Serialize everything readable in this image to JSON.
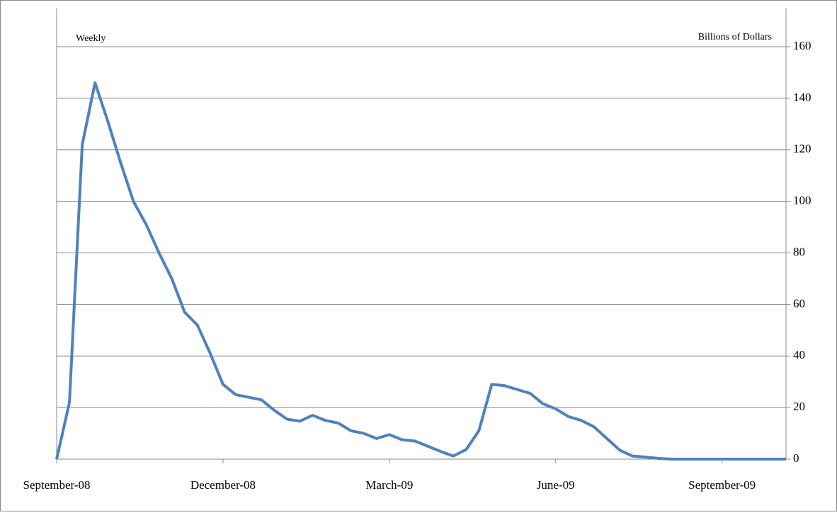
{
  "chart_data": {
    "type": "line",
    "annotation_left": "Weekly",
    "y_label": "Billions of Dollars",
    "categories": [
      "September-08",
      null,
      null,
      null,
      null,
      null,
      null,
      null,
      null,
      null,
      null,
      null,
      null,
      "December-08",
      null,
      null,
      null,
      null,
      null,
      null,
      null,
      null,
      null,
      null,
      null,
      null,
      "March-09",
      null,
      null,
      null,
      null,
      null,
      null,
      null,
      null,
      null,
      null,
      null,
      null,
      "June-09",
      null,
      null,
      null,
      null,
      null,
      null,
      null,
      null,
      null,
      null,
      null,
      null,
      "September-09",
      null,
      null,
      null,
      null,
      null
    ],
    "values": [
      0,
      22,
      122,
      146,
      131,
      115,
      100,
      91,
      80,
      70,
      57,
      52,
      41,
      29,
      25,
      24,
      23,
      19,
      15.5,
      14.7,
      17,
      15,
      14,
      11,
      10,
      8,
      9.5,
      7.5,
      7,
      5,
      3,
      1.2,
      3.7,
      11,
      29,
      28.5,
      27,
      25.5,
      21.5,
      19.5,
      16.5,
      15,
      12.5,
      8,
      3.5,
      1.2,
      0.8,
      0.3,
      0,
      0,
      0,
      0,
      0,
      0,
      0,
      0,
      0,
      0
    ],
    "color": "#4f81bd",
    "ylim": [
      0,
      160
    ],
    "yticks": [
      0,
      20,
      40,
      60,
      80,
      100,
      120,
      140,
      160
    ],
    "y_axis_side": "right",
    "grid": true
  }
}
